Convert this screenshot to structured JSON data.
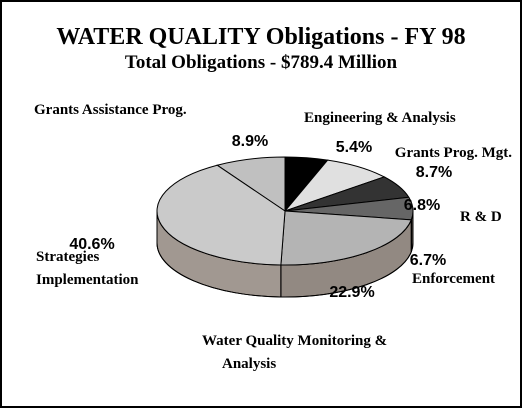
{
  "chart_data": {
    "type": "pie",
    "title": "WATER QUALITY Obligations - FY 98",
    "subtitle": "Total Obligations - $789.4 Million",
    "categories": [
      "Grants Assistance Prog.",
      "Engineering & Analysis",
      "Grants Prog. Mgt.",
      "R & D",
      "Enforcement",
      "Water Quality Monitoring & Analysis",
      "Strategies Implementation"
    ],
    "values": [
      8.9,
      5.4,
      8.7,
      6.8,
      6.7,
      22.9,
      40.6
    ],
    "value_labels": [
      "8.9%",
      "5.4%",
      "8.7%",
      "6.8%",
      "6.7%",
      "22.9%",
      "40.6%"
    ],
    "colors": [
      "#c0c0c0",
      "#000000",
      "#e0e0e0",
      "#333333",
      "#666666",
      "#b4b4b4",
      "#cacaca"
    ]
  }
}
